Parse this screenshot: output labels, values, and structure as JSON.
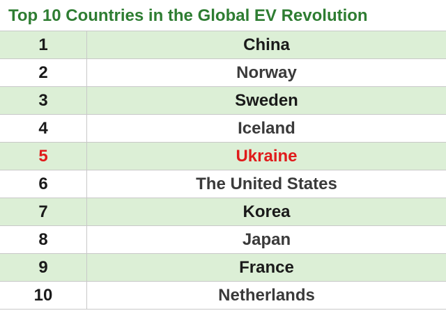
{
  "title": "Top 10 Countries in the Global EV Revolution",
  "highlight_color": "#e01b1b",
  "rows": [
    {
      "rank": "1",
      "country": "China"
    },
    {
      "rank": "2",
      "country": "Norway"
    },
    {
      "rank": "3",
      "country": "Sweden"
    },
    {
      "rank": "4",
      "country": "Iceland"
    },
    {
      "rank": "5",
      "country": "Ukraine"
    },
    {
      "rank": "6",
      "country": "The United States"
    },
    {
      "rank": "7",
      "country": "Korea"
    },
    {
      "rank": "8",
      "country": "Japan"
    },
    {
      "rank": "9",
      "country": "France"
    },
    {
      "rank": "10",
      "country": "Netherlands"
    }
  ]
}
